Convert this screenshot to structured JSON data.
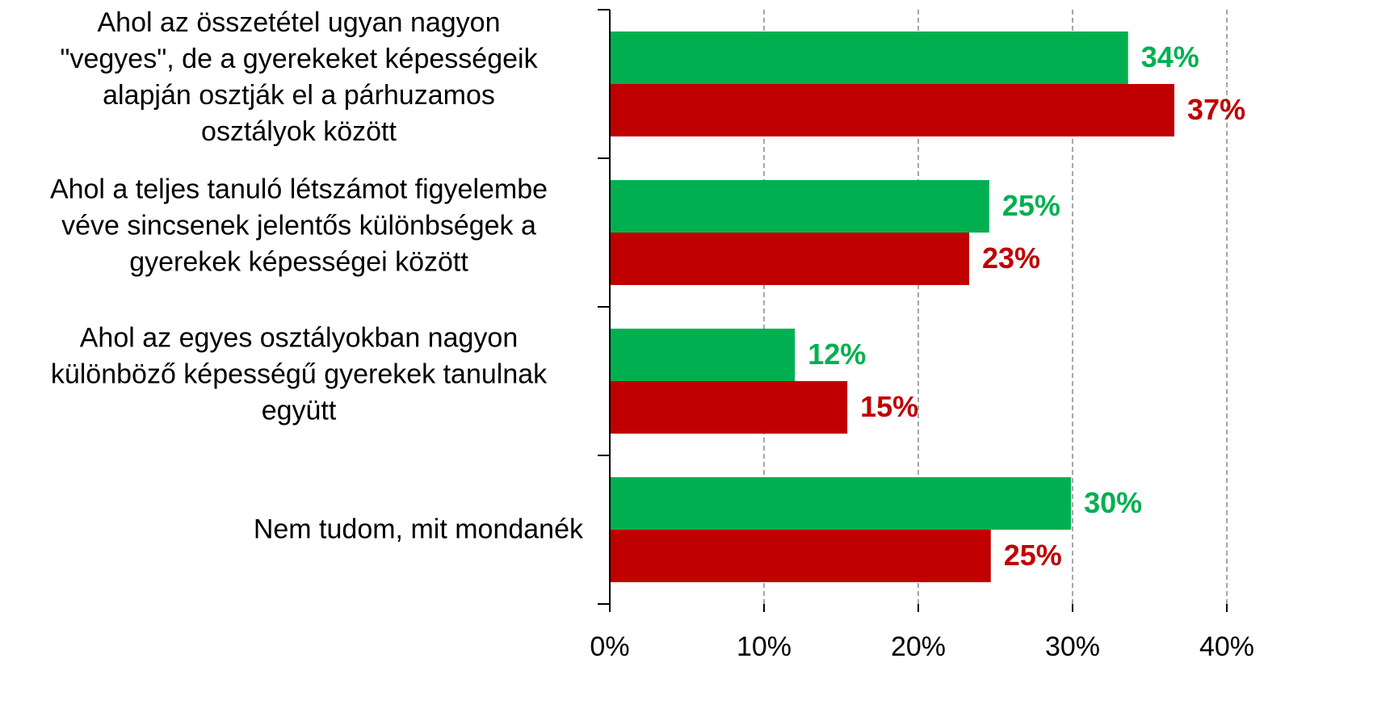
{
  "chart_data": {
    "type": "hbar",
    "categories": [
      "Ahol az összetétel ugyan nagyon\n\"vegyes\", de a gyerekeket képességeik\nalapján osztják el a párhuzamos\nosztályok között",
      "Ahol a teljes tanuló létszámot figyelembe\nvéve sincsenek jelentős különbségek a\ngyerekek képességei között",
      "Ahol az egyes osztályokban nagyon\nkülönböző képességű gyerekek tanulnak\negyütt",
      "Nem tudom, mit mondanék"
    ],
    "series": [
      {
        "color": "#00b050",
        "values": [
          33.6,
          24.6,
          12.0,
          29.9
        ],
        "value_labels": [
          "34%",
          "25%",
          "12%",
          "30%"
        ]
      },
      {
        "color": "#c00000",
        "values": [
          36.6,
          23.3,
          15.4,
          24.7
        ],
        "value_labels": [
          "37%",
          "23%",
          "15%",
          "25%"
        ]
      }
    ],
    "xlim": [
      0,
      40
    ],
    "xticks": [
      {
        "value": 0,
        "label": "0%"
      },
      {
        "value": 10,
        "label": "10%"
      },
      {
        "value": 20,
        "label": "20%"
      },
      {
        "value": 30,
        "label": "30%"
      },
      {
        "value": 40,
        "label": "40%"
      }
    ],
    "grid": true
  }
}
